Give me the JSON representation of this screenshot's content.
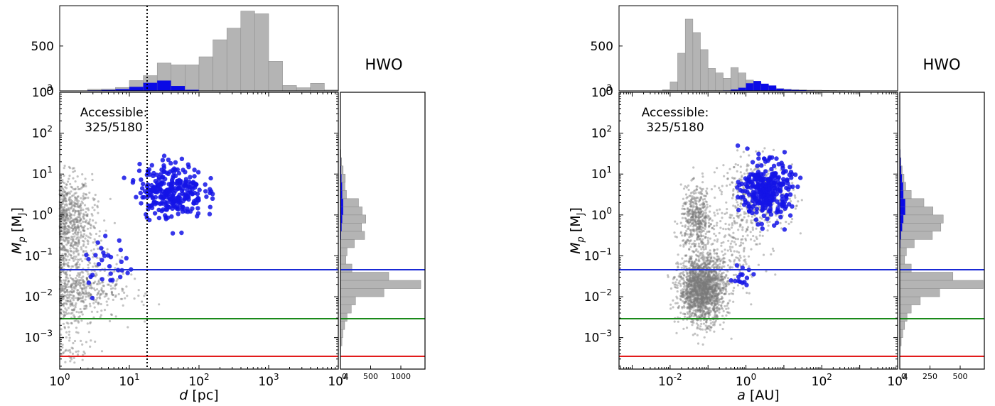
{
  "chart_data": [
    {
      "type": "scatter",
      "title": "HWO",
      "annotation": [
        "Accessible:",
        "325/5180"
      ],
      "xlabel": "d [pc]",
      "ylabel": "M_p [M_J]",
      "x_scale": "log",
      "y_scale": "log",
      "xlim": [
        1,
        10000
      ],
      "ylim": [
        0.00017,
        1000
      ],
      "x_ticks": [
        "10^0",
        "10^1",
        "10^2",
        "10^3",
        "10^4"
      ],
      "y_ticks": [
        "10^-3",
        "10^-2",
        "10^-1",
        "10^0",
        "10^1",
        "10^2",
        "10^3"
      ],
      "reference_lines": [
        {
          "color": "#1a2ad6",
          "y": 0.053
        },
        {
          "color": "#1a8a1a",
          "y": 0.0031
        },
        {
          "color": "#e21b1b",
          "y": 0.00031
        },
        {
          "color": "#000000",
          "style": "dotted",
          "x": 20
        }
      ],
      "series": [
        {
          "color": "#7a7a7a",
          "role": "all planets",
          "clusters": [
            {
              "n": 900,
              "x_center": 1.0,
              "x_spread": 1.7,
              "y_center": 1.0,
              "y_spread": 3.1
            },
            {
              "n": 500,
              "x_center": 1.0,
              "x_spread": 2.0,
              "y_center": 0.15,
              "y_spread": 3.3
            },
            {
              "n": 800,
              "x_center": 1.0,
              "x_spread": 2.7,
              "y_center": 0.015,
              "y_spread": 2.3
            },
            {
              "n": 150,
              "x_center": 1.0,
              "x_spread": 1.8,
              "y_center": 0.0012,
              "y_spread": 3.2
            }
          ]
        },
        {
          "color": "#1414e6",
          "role": "accessible",
          "clusters": [
            {
              "n": 300,
              "x_center": 40,
              "x_spread": 1.7,
              "y_center": 4,
              "y_spread": 2.2
            },
            {
              "n": 30,
              "x_center": 5,
              "x_spread": 1.6,
              "y_center": 0.06,
              "y_spread": 2.2
            }
          ]
        }
      ],
      "top_histogram": {
        "ylim": [
          0,
          950
        ],
        "y_ticks": [
          0,
          500
        ],
        "bin_edges": [
          2.51,
          3.98,
          6.31,
          10,
          15.85,
          25.12,
          39.81,
          63.1,
          100,
          158.5,
          251.2,
          398.1,
          631,
          1000,
          1585,
          2512,
          3981,
          6310,
          10000
        ],
        "all_counts": [
          18,
          22,
          38,
          115,
          170,
          310,
          290,
          290,
          380,
          570,
          700,
          890,
          860,
          330,
          60,
          35,
          85,
          10
        ],
        "accessible_counts": [
          6,
          10,
          20,
          45,
          90,
          115,
          55,
          12,
          2,
          0,
          0,
          0,
          0,
          0,
          0,
          0,
          0,
          0
        ]
      },
      "right_histogram": {
        "xlim": [
          0,
          1400
        ],
        "x_ticks": [
          0,
          500,
          1000
        ],
        "bin_edges": [
          0.0004,
          0.00063,
          0.001,
          0.00158,
          0.00251,
          0.00398,
          0.0063,
          0.01,
          0.0158,
          0.0251,
          0.0398,
          0.063,
          0.1,
          0.158,
          0.251,
          0.398,
          0.63,
          1,
          1.58,
          2.51,
          3.98,
          6.3,
          10,
          15.8,
          25.1,
          39.8
        ],
        "all_counts": [
          5,
          25,
          40,
          70,
          110,
          180,
          250,
          720,
          1330,
          800,
          190,
          90,
          110,
          230,
          400,
          350,
          420,
          360,
          300,
          100,
          75,
          80,
          45,
          20,
          8
        ],
        "accessible_counts": [
          0,
          0,
          0,
          0,
          0,
          0,
          0,
          0,
          0,
          0,
          0,
          0,
          0,
          5,
          10,
          20,
          30,
          45,
          45,
          30,
          28,
          18,
          12,
          8,
          4
        ]
      }
    },
    {
      "type": "scatter",
      "title": "HWO",
      "annotation": [
        "Accessible:",
        "325/5180"
      ],
      "xlabel": "a [AU]",
      "ylabel": "M_p [M_J]",
      "x_scale": "log",
      "y_scale": "log",
      "xlim": [
        0.00045,
        10000
      ],
      "ylim": [
        0.00017,
        1000
      ],
      "x_ticks": [
        "10^-2",
        "10^0",
        "10^2",
        "10^4"
      ],
      "y_ticks": [
        "10^-3",
        "10^-2",
        "10^-1",
        "10^0",
        "10^1",
        "10^2",
        "10^3"
      ],
      "reference_lines": [
        {
          "color": "#1a2ad6",
          "y": 0.053
        },
        {
          "color": "#1a8a1a",
          "y": 0.0031
        },
        {
          "color": "#e21b1b",
          "y": 0.00031
        }
      ],
      "series": [
        {
          "color": "#7a7a7a",
          "role": "all planets",
          "clusters": [
            {
              "n": 450,
              "x_center": 0.05,
              "x_spread": 1.6,
              "y_center": 0.8,
              "y_spread": 2.4
            },
            {
              "n": 1800,
              "x_center": 0.07,
              "x_spread": 2.0,
              "y_center": 0.015,
              "y_spread": 2.5
            },
            {
              "n": 400,
              "x_center": 2.0,
              "x_spread": 3.0,
              "y_center": 3.0,
              "y_spread": 2.8
            },
            {
              "n": 200,
              "x_center": 0.3,
              "x_spread": 3.0,
              "y_center": 0.15,
              "y_spread": 3.5
            }
          ]
        },
        {
          "color": "#1414e6",
          "role": "accessible",
          "clusters": [
            {
              "n": 310,
              "x_center": 3.5,
              "x_spread": 2.1,
              "y_center": 4,
              "y_spread": 2.2
            },
            {
              "n": 15,
              "x_center": 0.8,
              "x_spread": 1.5,
              "y_center": 0.03,
              "y_spread": 1.6
            }
          ]
        }
      ],
      "top_histogram": {
        "ylim": [
          0,
          950
        ],
        "y_ticks": [
          0,
          500
        ],
        "bin_edges": [
          0.0063,
          0.01,
          0.0158,
          0.0251,
          0.0398,
          0.063,
          0.1,
          0.158,
          0.251,
          0.398,
          0.63,
          1,
          1.58,
          2.51,
          3.98,
          6.3,
          10,
          15.8,
          25.1,
          39.8,
          63,
          100,
          158,
          251,
          398,
          631
        ],
        "all_counts": [
          12,
          100,
          420,
          800,
          650,
          460,
          250,
          200,
          140,
          260,
          200,
          120,
          95,
          60,
          38,
          25,
          18,
          14,
          12,
          8,
          8,
          6,
          5,
          4,
          3
        ],
        "accessible_counts": [
          0,
          0,
          0,
          0,
          0,
          0,
          0,
          0,
          5,
          15,
          35,
          85,
          110,
          80,
          60,
          25,
          15,
          10,
          8,
          5,
          3,
          2,
          1,
          1,
          0
        ]
      },
      "right_histogram": {
        "xlim": [
          0,
          700
        ],
        "x_ticks": [
          0,
          250,
          500
        ],
        "bin_edges": [
          0.0004,
          0.00063,
          0.001,
          0.00158,
          0.00251,
          0.00398,
          0.0063,
          0.01,
          0.0158,
          0.0251,
          0.0398,
          0.063,
          0.1,
          0.158,
          0.251,
          0.398,
          0.63,
          1,
          1.58,
          2.51,
          3.98,
          6.3,
          10,
          15.8,
          25.1,
          39.8
        ],
        "all_counts": [
          3,
          12,
          25,
          40,
          60,
          95,
          170,
          330,
          690,
          440,
          95,
          40,
          55,
          120,
          270,
          340,
          360,
          275,
          200,
          95,
          50,
          35,
          20,
          10,
          4
        ],
        "accessible_counts": [
          0,
          0,
          0,
          0,
          0,
          0,
          0,
          0,
          0,
          0,
          0,
          0,
          0,
          5,
          10,
          20,
          30,
          45,
          45,
          30,
          28,
          18,
          12,
          8,
          4
        ]
      }
    }
  ]
}
